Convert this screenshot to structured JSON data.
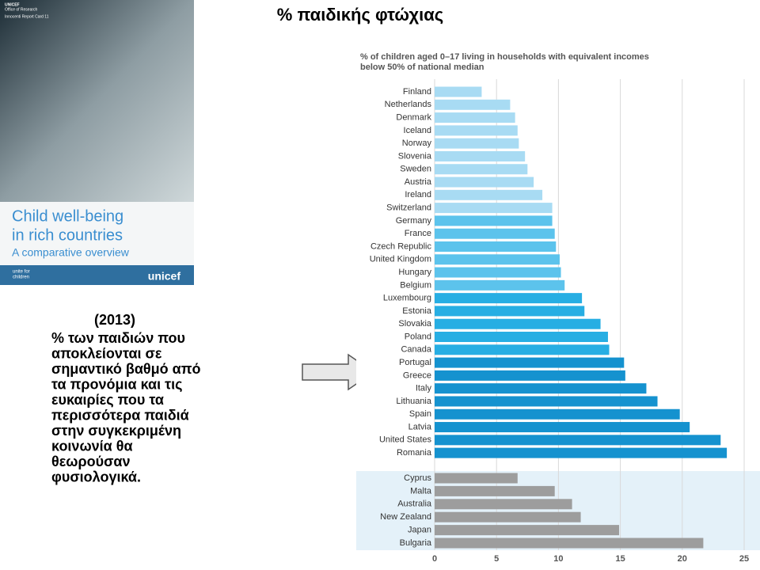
{
  "slide_title": "% παιδικής φτώχιας",
  "cover": {
    "org_lines": [
      "UNICEF",
      "Office of Research"
    ],
    "series_name": "Innocenti Report Card 11",
    "title_lines": [
      "Child well-being",
      "in rich countries"
    ],
    "subtitle": "A comparative overview",
    "slogan_lines": [
      "unite for",
      "children"
    ],
    "logo": "unicef"
  },
  "note": {
    "year": "(2013)",
    "lines": [
      "% των παιδιών που",
      "αποκλείονται σε",
      "σημαντικό βαθμό από",
      "τα προνόμια και τις",
      "ευκαιρίες που τα",
      "περισσότερα παιδιά",
      "στην συγκεκριμένη",
      "κοινωνία θα",
      "θεωρούσαν",
      "φυσιολογικά."
    ]
  },
  "chart_data": [
    {
      "type": "bar",
      "title_lines": [
        "% of children aged 0–17 living in households with equivalent incomes",
        "below 50% of national median"
      ],
      "categories": [
        "Finland",
        "Netherlands",
        "Denmark",
        "Iceland",
        "Norway",
        "Slovenia",
        "Sweden",
        "Austria",
        "Ireland",
        "Switzerland",
        "Germany",
        "France",
        "Czech Republic",
        "United Kingdom",
        "Hungary",
        "Belgium",
        "Luxembourg",
        "Estonia",
        "Slovakia",
        "Poland",
        "Canada",
        "Portugal",
        "Greece",
        "Italy",
        "Lithuania",
        "Spain",
        "Latvia",
        "United States",
        "Romania"
      ],
      "values": [
        3.8,
        6.1,
        6.5,
        6.7,
        6.8,
        7.3,
        7.5,
        8.0,
        8.7,
        9.5,
        9.5,
        9.7,
        9.8,
        10.1,
        10.2,
        10.5,
        11.9,
        12.1,
        13.4,
        14.0,
        14.1,
        15.3,
        15.4,
        17.1,
        18.0,
        19.8,
        20.6,
        23.1,
        23.6
      ],
      "colors": [
        "#a8dbf3",
        "#a8dbf3",
        "#a8dbf3",
        "#a8dbf3",
        "#a8dbf3",
        "#a8dbf3",
        "#a8dbf3",
        "#a8dbf3",
        "#a8dbf3",
        "#a8dbf3",
        "#5cc3ec",
        "#5cc3ec",
        "#5cc3ec",
        "#5cc3ec",
        "#5cc3ec",
        "#5cc3ec",
        "#27aee3",
        "#27aee3",
        "#27aee3",
        "#27aee3",
        "#27aee3",
        "#1592cf",
        "#1592cf",
        "#1592cf",
        "#1592cf",
        "#1592cf",
        "#1592cf",
        "#1592cf",
        "#1592cf"
      ],
      "xlim": [
        0,
        25
      ],
      "xticks": [
        0,
        5,
        10,
        15,
        20,
        25
      ],
      "grid": true
    },
    {
      "type": "bar",
      "categories": [
        "Cyprus",
        "Malta",
        "Australia",
        "New Zealand",
        "Japan",
        "Bulgaria"
      ],
      "values": [
        6.7,
        9.7,
        11.1,
        11.8,
        14.9,
        21.7
      ],
      "color": "#9d9d9d",
      "xlim": [
        0,
        25
      ],
      "xticks": [
        0,
        5,
        10,
        15,
        20,
        25
      ],
      "grid": true
    }
  ]
}
